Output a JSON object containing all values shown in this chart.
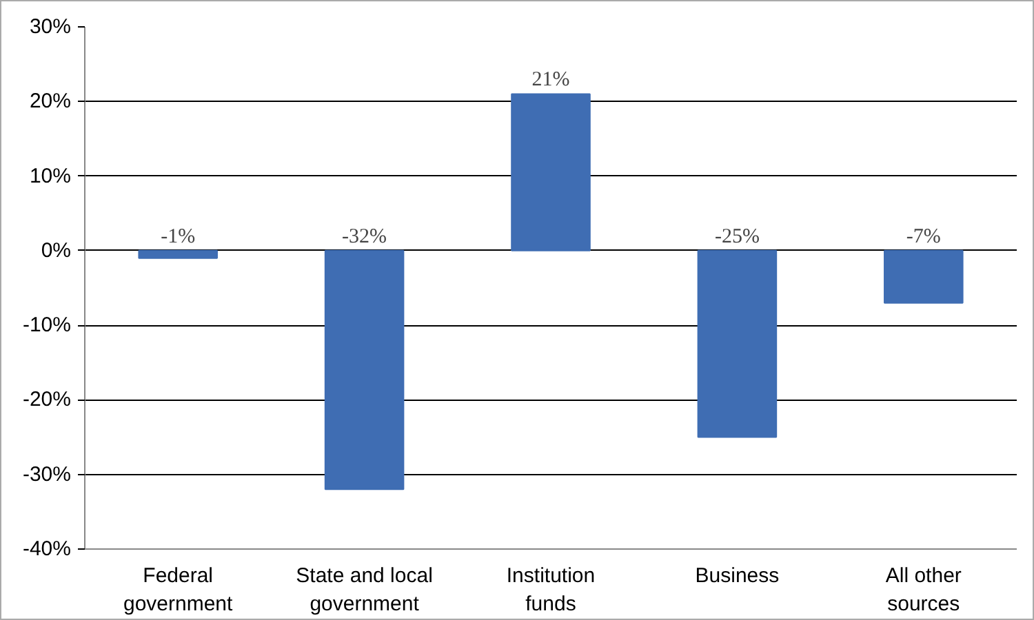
{
  "chart_data": {
    "type": "bar",
    "categories": [
      "Federal\ngovernment",
      "State and local\ngovernment",
      "Institution\nfunds",
      "Business",
      "All other\nsources"
    ],
    "values": [
      -1,
      -32,
      21,
      -25,
      -7
    ],
    "value_labels": [
      "-1%",
      "-32%",
      "21%",
      "-25%",
      "-7%"
    ],
    "color": "#3f6db3",
    "ylim": [
      -40,
      30
    ],
    "yticks": [
      {
        "value": -40,
        "label": "-40%"
      },
      {
        "value": -30,
        "label": "-30%"
      },
      {
        "value": -20,
        "label": "-20%"
      },
      {
        "value": -10,
        "label": "-10%"
      },
      {
        "value": 0,
        "label": "0%"
      },
      {
        "value": 10,
        "label": "10%"
      },
      {
        "value": 20,
        "label": "20%"
      },
      {
        "value": 30,
        "label": "30%"
      }
    ],
    "grid": "y"
  }
}
